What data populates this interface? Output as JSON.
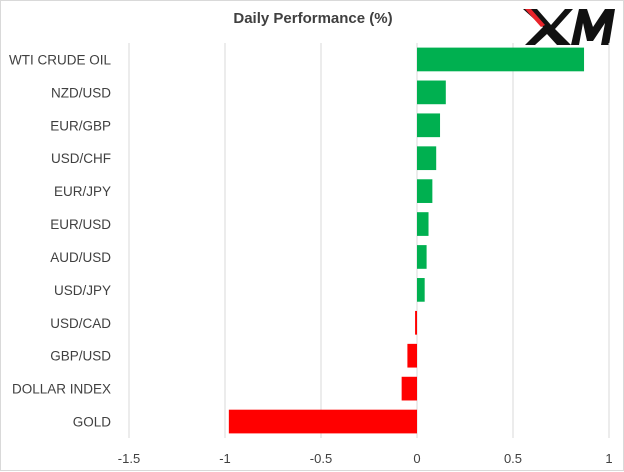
{
  "chart_data": {
    "type": "bar",
    "orientation": "horizontal",
    "title": "Daily Performance (%)",
    "categories": [
      "WTI CRUDE OIL",
      "NZD/USD",
      "EUR/GBP",
      "USD/CHF",
      "EUR/JPY",
      "EUR/USD",
      "AUD/USD",
      "USD/JPY",
      "USD/CAD",
      "GBP/USD",
      "DOLLAR INDEX",
      "GOLD"
    ],
    "values": [
      0.87,
      0.15,
      0.12,
      0.1,
      0.08,
      0.06,
      0.05,
      0.04,
      -0.01,
      -0.05,
      -0.08,
      -0.98
    ],
    "xlim": [
      -1.5,
      1
    ],
    "xticks": [
      -1.5,
      -1,
      -0.5,
      0,
      0.5,
      1
    ],
    "xlabel": "",
    "ylabel": "",
    "grid": "vertical",
    "legend": "none",
    "colors": {
      "positive": "#00b050",
      "negative": "#ff0000",
      "grid": "#d9d9d9",
      "text": "#404040"
    }
  },
  "brand": {
    "logo_text": "XM",
    "logo_icon": "xm-logo",
    "color": "#111111"
  }
}
